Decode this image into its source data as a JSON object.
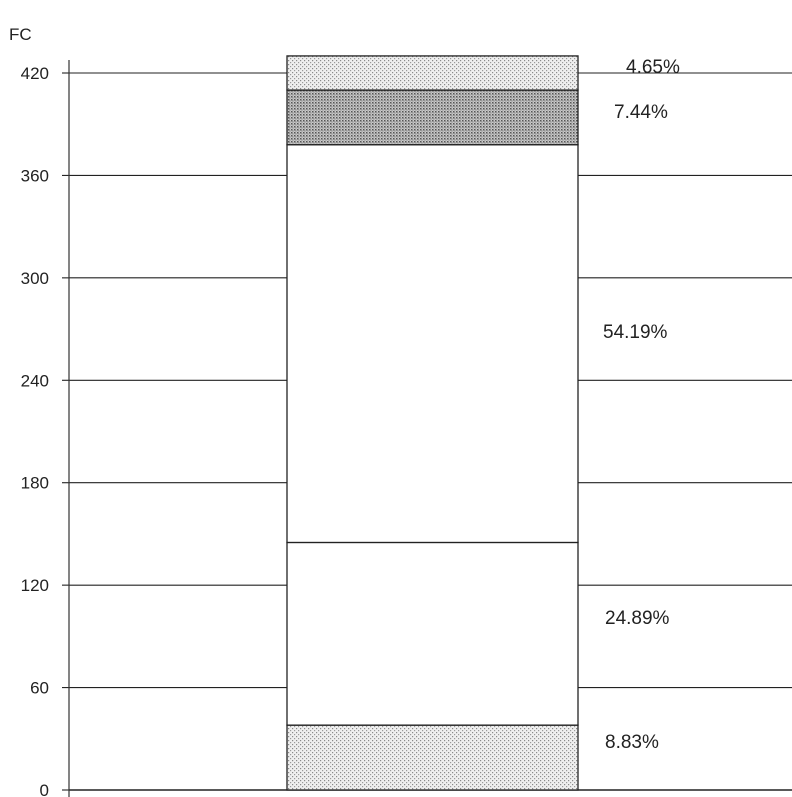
{
  "chart_data": {
    "type": "bar",
    "stacked": true,
    "ylabel": "FC",
    "ylim": [
      0,
      420
    ],
    "yticks": [
      "0",
      "60",
      "120",
      "180",
      "240",
      "300",
      "360",
      "420"
    ],
    "grid": true,
    "segments": [
      {
        "value": 38,
        "percent_label": "8.83%",
        "fill": "dotted-light"
      },
      {
        "value": 107,
        "percent_label": "24.89%",
        "fill": "white"
      },
      {
        "value": 233,
        "percent_label": "54.19%",
        "fill": "white"
      },
      {
        "value": 32,
        "percent_label": "7.44%",
        "fill": "dotted-dark"
      },
      {
        "value": 20,
        "percent_label": "4.65%",
        "fill": "dotted-light"
      }
    ],
    "total": 430
  }
}
